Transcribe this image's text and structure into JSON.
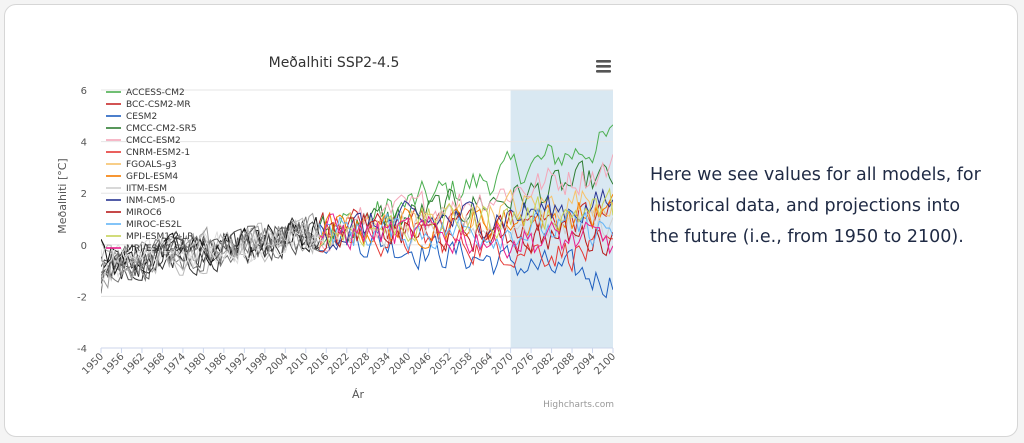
{
  "description_text": "Here we see values for all models, for historical data, and projections into the future (i.e., from 1950 to 2100).",
  "credits": "Highcharts.com",
  "menu_icon": "hamburger-menu-icon",
  "chart_data": {
    "type": "line",
    "title": "Meðalhiti SSP2-4.5",
    "xlabel": "Ár",
    "ylabel": "Meðalhiti [°C]",
    "xlim": [
      1950,
      2100
    ],
    "ylim": [
      -4,
      6
    ],
    "y_ticks": [
      6,
      4,
      2,
      0,
      -2,
      -4
    ],
    "x_ticks": [
      1950,
      1956,
      1962,
      1968,
      1974,
      1980,
      1986,
      1992,
      1998,
      2004,
      2010,
      2016,
      2022,
      2028,
      2034,
      2040,
      2046,
      2052,
      2058,
      2064,
      2070,
      2076,
      2082,
      2088,
      2094,
      2100
    ],
    "highlight_band": {
      "from": 2070,
      "to": 2100,
      "color": "#d9e8f2"
    },
    "grid": true,
    "legend_position": "top-left",
    "historical_until": 2014,
    "series": [
      {
        "name": "ACCESS-CM2",
        "color": "#4caf50",
        "end_value": 4.1
      },
      {
        "name": "BCC-CSM2-MR",
        "color": "#c62828",
        "end_value": 1.1
      },
      {
        "name": "CESM2",
        "color": "#1f5fbf",
        "end_value": -1.4
      },
      {
        "name": "CMCC-CM2-SR5",
        "color": "#2e7d32",
        "end_value": 2.6
      },
      {
        "name": "CMCC-ESM2",
        "color": "#f4a7b9",
        "end_value": 3.0
      },
      {
        "name": "CNRM-ESM2-1",
        "color": "#e53935",
        "end_value": -0.4
      },
      {
        "name": "FGOALS-g3",
        "color": "#f6c26b",
        "end_value": 1.9
      },
      {
        "name": "GFDL-ESM4",
        "color": "#f57c00",
        "end_value": 1.2
      },
      {
        "name": "IITM-ESM",
        "color": "#cfcfcf",
        "end_value": 0.9
      },
      {
        "name": "INM-CM5-0",
        "color": "#283593",
        "end_value": 1.6
      },
      {
        "name": "MIROC6",
        "color": "#b71c1c",
        "end_value": 0.3
      },
      {
        "name": "MIROC-ES2L",
        "color": "#64b5f6",
        "end_value": 0.6
      },
      {
        "name": "MPI-ESM1-2-LR",
        "color": "#c6d35a",
        "end_value": 1.4
      },
      {
        "name": "MRI-ESM2-0",
        "color": "#e91e8c",
        "end_value": 0.1
      }
    ]
  }
}
